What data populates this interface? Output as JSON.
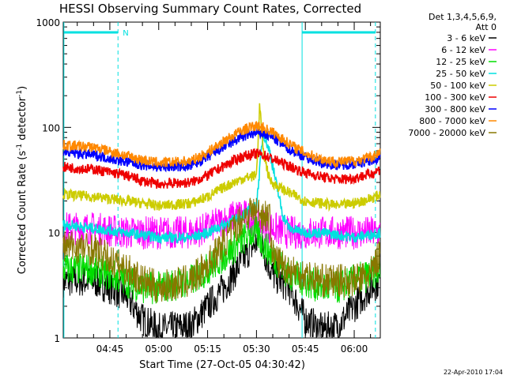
{
  "chart_data": {
    "type": "line",
    "title": "HESSI Observing Summary Count Rates, Corrected",
    "xlabel": "Start Time (27-Oct-05 04:30:42)",
    "ylabel": "Corrected Count Rate (s⁻¹ detector⁻¹)",
    "yscale": "log",
    "ylim": [
      1,
      1000
    ],
    "xlim_minutes_after_0430": [
      0.7,
      98
    ],
    "x_ticks": [
      "04:45",
      "05:00",
      "05:15",
      "05:30",
      "05:45",
      "06:00"
    ],
    "y_ticks": [
      "1",
      "10",
      "100",
      "1000"
    ],
    "grid": false,
    "legend_position": "right",
    "legend_header": [
      "Det 1,3,4,5,6,9,",
      "Att 0"
    ],
    "footer": "22-Apr-2010 17:04",
    "night_marker": "N",
    "series": [
      {
        "name": "3 - 6 keV",
        "color": "#000000",
        "x": [
          0.7,
          10,
          15,
          20,
          25,
          30,
          40,
          45,
          50,
          55,
          58,
          60,
          61,
          62,
          65,
          70,
          75,
          80,
          85,
          90,
          95,
          98
        ],
        "y": [
          3.5,
          3.5,
          3,
          2.5,
          1.5,
          1.2,
          1.3,
          2,
          3,
          5,
          7,
          8,
          9,
          7,
          4,
          3,
          1.5,
          1.2,
          1.3,
          2,
          3,
          3.5
        ]
      },
      {
        "name": "6 - 12 keV",
        "color": "#ff00ff",
        "x": [
          0.7,
          10,
          20,
          30,
          40,
          45,
          50,
          55,
          60,
          62,
          65,
          70,
          80,
          90,
          98
        ],
        "y": [
          11,
          11,
          10,
          10,
          10,
          11,
          13,
          15,
          13,
          12,
          11,
          10,
          10,
          10,
          10
        ]
      },
      {
        "name": "12 - 25 keV",
        "color": "#00dd00",
        "x": [
          0.7,
          10,
          15,
          20,
          25,
          30,
          40,
          45,
          50,
          55,
          58,
          60,
          62,
          65,
          70,
          75,
          80,
          85,
          90,
          95,
          98
        ],
        "y": [
          4.5,
          4.5,
          4,
          3.5,
          3,
          3,
          3.5,
          4.5,
          6,
          8,
          10,
          10,
          8,
          6,
          4,
          3.5,
          3,
          3,
          3.5,
          4,
          4.5
        ]
      },
      {
        "name": "25 - 50 keV",
        "color": "#00e0e0",
        "x": [
          0.7,
          10,
          20,
          30,
          40,
          45,
          50,
          55,
          60,
          61,
          62,
          64,
          66,
          68,
          70,
          75,
          80,
          90,
          98
        ],
        "y": [
          12,
          11,
          10,
          9,
          9,
          10,
          12,
          14,
          18,
          40,
          90,
          60,
          30,
          15,
          11,
          10,
          10,
          9,
          10
        ]
      },
      {
        "name": "50 - 100 keV",
        "color": "#cccc00",
        "x": [
          0.7,
          10,
          20,
          25,
          30,
          40,
          45,
          50,
          55,
          58,
          60,
          61,
          62,
          64,
          66,
          70,
          75,
          80,
          85,
          90,
          95,
          98
        ],
        "y": [
          23,
          22,
          20,
          19,
          18,
          19,
          22,
          27,
          32,
          34,
          35,
          170,
          60,
          32,
          28,
          24,
          20,
          19,
          18,
          19,
          21,
          23
        ]
      },
      {
        "name": "100 - 300 keV",
        "color": "#ee0000",
        "x": [
          0.7,
          10,
          20,
          25,
          30,
          40,
          45,
          50,
          55,
          58,
          60,
          62,
          65,
          70,
          75,
          80,
          85,
          90,
          95,
          98
        ],
        "y": [
          42,
          40,
          35,
          31,
          29,
          30,
          35,
          43,
          52,
          55,
          56,
          55,
          50,
          43,
          37,
          34,
          32,
          33,
          36,
          40
        ]
      },
      {
        "name": "300 - 800 keV",
        "color": "#0000ff",
        "x": [
          0.7,
          10,
          20,
          25,
          30,
          40,
          45,
          50,
          55,
          58,
          60,
          62,
          65,
          70,
          75,
          80,
          85,
          90,
          95,
          98
        ],
        "y": [
          58,
          55,
          47,
          44,
          42,
          43,
          52,
          65,
          80,
          86,
          88,
          87,
          80,
          62,
          52,
          46,
          44,
          45,
          48,
          52
        ]
      },
      {
        "name": "800 - 7000 keV",
        "color": "#ff8800",
        "x": [
          0.7,
          10,
          20,
          25,
          30,
          40,
          45,
          50,
          55,
          58,
          60,
          62,
          65,
          70,
          75,
          80,
          85,
          90,
          95,
          98
        ],
        "y": [
          68,
          65,
          54,
          49,
          46,
          48,
          58,
          74,
          92,
          100,
          103,
          100,
          90,
          70,
          57,
          50,
          47,
          48,
          52,
          58
        ]
      },
      {
        "name": "7000 - 20000 keV",
        "color": "#887700",
        "x": [
          0.7,
          10,
          15,
          20,
          25,
          30,
          40,
          45,
          50,
          55,
          58,
          60,
          62,
          64,
          65,
          68,
          70,
          75,
          80,
          85,
          90,
          95,
          98
        ],
        "y": [
          7.5,
          7,
          5.5,
          4.5,
          3.5,
          3,
          3.5,
          5,
          8,
          13,
          16,
          16,
          15,
          14,
          6,
          5,
          4.5,
          4,
          3.5,
          3.5,
          3.5,
          4,
          6.5
        ]
      }
    ]
  }
}
